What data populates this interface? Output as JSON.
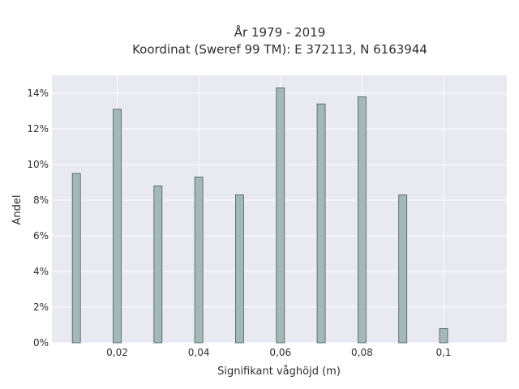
{
  "chart_data": {
    "type": "bar",
    "title_line1": "År 1979 - 2019",
    "title_line2": "Koordinat (Sweref 99 TM): E 372113, N 6163944",
    "xlabel": "Signifikant våghöjd (m)",
    "ylabel": "Andel",
    "x": [
      0.01,
      0.02,
      0.03,
      0.04,
      0.05,
      0.06,
      0.07,
      0.08,
      0.09,
      0.1
    ],
    "values": [
      9.5,
      13.1,
      8.8,
      9.3,
      8.3,
      14.3,
      13.4,
      13.8,
      8.3,
      0.8
    ],
    "xlim": [
      0.004,
      0.1155
    ],
    "ylim": [
      0,
      15
    ],
    "xticks": [
      0.02,
      0.04,
      0.06,
      0.08,
      0.1
    ],
    "xtick_labels": [
      "0,02",
      "0,04",
      "0,06",
      "0,08",
      "0,1"
    ],
    "yticks": [
      0,
      2,
      4,
      6,
      8,
      10,
      12,
      14
    ],
    "ytick_labels": [
      "0%",
      "2%",
      "4%",
      "6%",
      "8%",
      "10%",
      "12%",
      "14%"
    ],
    "grid": true,
    "colors": {
      "bar_fill": "#a3b8b8",
      "bar_stroke": "#4a5a5a",
      "plot_bg": "#e9e9f1",
      "grid": "#ffffff"
    }
  }
}
